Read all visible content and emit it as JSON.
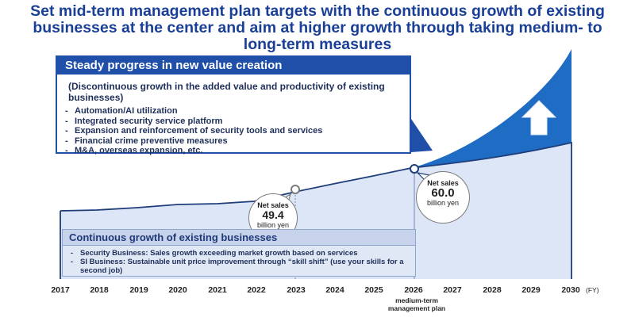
{
  "title": {
    "line1": "Set mid-term management plan targets with the continuous growth of existing",
    "line2": "businesses at the center and aim at higher growth through taking medium- to",
    "line3": "long-term measures"
  },
  "new_value": {
    "heading": "Steady progress in new value creation",
    "subheading": "(Discontinuous growth in the added value and productivity of existing businesses)",
    "items": [
      "Automation/AI utilization",
      "Integrated security service platform",
      "Expansion and reinforcement of security tools and services",
      "Financial crime preventive measures",
      "M&A, overseas expansion, etc."
    ]
  },
  "existing": {
    "heading": "Continuous growth of existing businesses",
    "items": [
      "Security Business: Sales growth exceeding market growth based on services",
      "SI Business: Sustainable unit price improvement through “skill shift” (use your skills for a second job)"
    ]
  },
  "callouts": [
    {
      "label": "Net sales",
      "value": "49.4",
      "unit": "billion yen",
      "year": "2023"
    },
    {
      "label": "Net sales",
      "value": "60.0",
      "unit": "billion yen",
      "year": "2026"
    }
  ],
  "axis": {
    "years": [
      "2017",
      "2018",
      "2019",
      "2020",
      "2021",
      "2022",
      "2023",
      "2024",
      "2025",
      "2026",
      "2027",
      "2028",
      "2029",
      "2030"
    ],
    "unit": "(FY)",
    "milestone_label": "medium-term management plan",
    "milestone_year": "2026"
  },
  "colors": {
    "title": "#1a3f96",
    "base_fill": "#dce6f6",
    "growth_fill": "#1f6cc4",
    "line": "#1f3d7a",
    "header": "#1f4fa8"
  },
  "icons": {
    "growth_arrow": "up-arrow-icon"
  }
}
